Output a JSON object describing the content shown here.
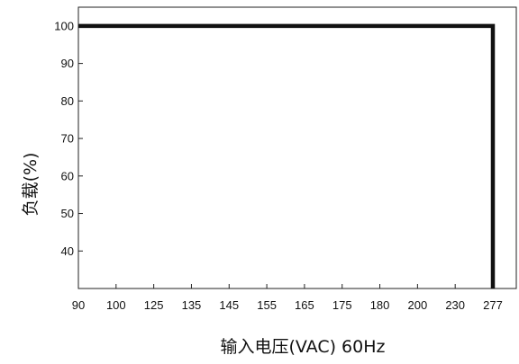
{
  "chart_data": {
    "type": "line",
    "title": "",
    "xlabel": "输入电压(VAC) 60Hz",
    "ylabel": "负载(%)",
    "x_tick_labels": [
      "90",
      "100",
      "125",
      "135",
      "145",
      "155",
      "165",
      "175",
      "180",
      "200",
      "230",
      "277"
    ],
    "y_ticks": [
      40,
      50,
      60,
      70,
      80,
      90,
      100
    ],
    "ylim": [
      30,
      105
    ],
    "grid": false,
    "legend": "none",
    "series": [
      {
        "points": [
          {
            "x": "90",
            "y": 100
          },
          {
            "x": "277",
            "y": 100
          },
          {
            "x": "277",
            "y": 30
          }
        ]
      }
    ],
    "colors": {
      "line": "#111111",
      "axis": "#222222",
      "background": "#ffffff"
    }
  }
}
